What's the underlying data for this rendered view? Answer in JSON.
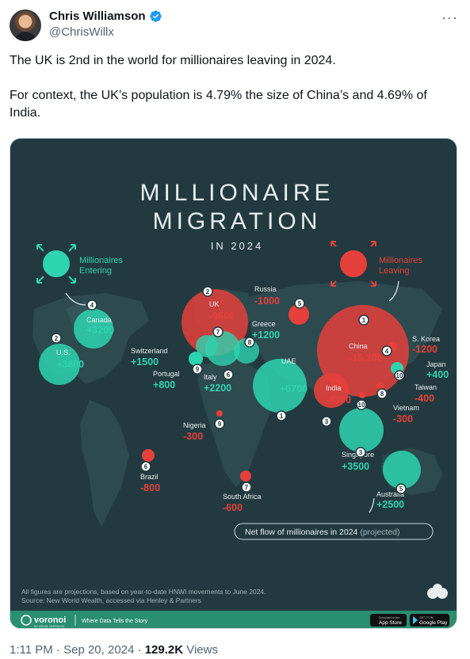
{
  "post": {
    "author_name": "Chris Williamson",
    "author_handle": "@ChrisWillx",
    "more_icon": "more-icon",
    "text_line1": "The UK is 2nd in the world for millionaires leaving in 2024.",
    "text_line2": "For context, the UK’s population is 4.79% the size of China’s and 4.69% of India.",
    "time": "1:11 PM",
    "date": "Sep 20, 2024",
    "views": "129.2K",
    "views_label": "Views",
    "separator": "·"
  },
  "infographic": {
    "title_line1": "MILLIONAIRE",
    "title_line2": "MIGRATION",
    "subtitle": "IN 2024",
    "legend_entering": [
      "Millionaires",
      "Entering"
    ],
    "legend_leaving": [
      "Millionaires",
      "Leaving"
    ],
    "net_flow_label": "Net flow of millionaires in 2024",
    "net_flow_suffix": "(projected)",
    "footnote_line1": "All figures are projections, based on year-to-date HNWI movements to June 2024.",
    "footnote_line2": "Source: New World Wealth, accessed via Henley & Partners",
    "brand": "voronoi",
    "brand_sub": "BY VISUAL CAPITALIST",
    "brand_tagline": "Where Data Tells the Story",
    "app_store": "App Store",
    "google_play": "Google Play",
    "app_store_top": "Download on the",
    "google_play_top": "GET IT ON",
    "colors": {
      "entering": "#2ed3b0",
      "leaving": "#e5403b",
      "bg": "#223a3f",
      "land": "#2d4a4f"
    }
  },
  "chart_data": {
    "type": "bubble-map",
    "entering": [
      {
        "rank": "1",
        "country": "UAE",
        "value": "+6700"
      },
      {
        "rank": "2",
        "country": "U.S.",
        "value": "+3800"
      },
      {
        "rank": "3",
        "country": "Singapore",
        "value": "+3500"
      },
      {
        "rank": "4",
        "country": "Canada",
        "value": "+3200"
      },
      {
        "rank": "5",
        "country": "Australia",
        "value": "+2500"
      },
      {
        "rank": "6",
        "country": "Italy",
        "value": "+2200"
      },
      {
        "rank": "7",
        "country": "Switzerland",
        "value": "+1500"
      },
      {
        "rank": "8",
        "country": "Greece",
        "value": "+1200"
      },
      {
        "rank": "9",
        "country": "Portugal",
        "value": "+800"
      },
      {
        "rank": "10",
        "country": "Japan",
        "value": "+400"
      }
    ],
    "leaving": [
      {
        "rank": "1",
        "country": "China",
        "value": "-15,200"
      },
      {
        "rank": "2",
        "country": "UK",
        "value": "-9500"
      },
      {
        "rank": "3",
        "country": "India",
        "value": "-4300"
      },
      {
        "rank": "4",
        "country": "S. Korea",
        "value": "-1200"
      },
      {
        "rank": "5",
        "country": "Russia",
        "value": "-1000"
      },
      {
        "rank": "6",
        "country": "Brazil",
        "value": "-800"
      },
      {
        "rank": "7",
        "country": "South Africa",
        "value": "-600"
      },
      {
        "rank": "8",
        "country": "Taiwan",
        "value": "-400"
      },
      {
        "rank": "9",
        "country": "Nigeria",
        "value": "-300"
      },
      {
        "rank": "10",
        "country": "Vietnam",
        "value": "-300"
      }
    ]
  }
}
